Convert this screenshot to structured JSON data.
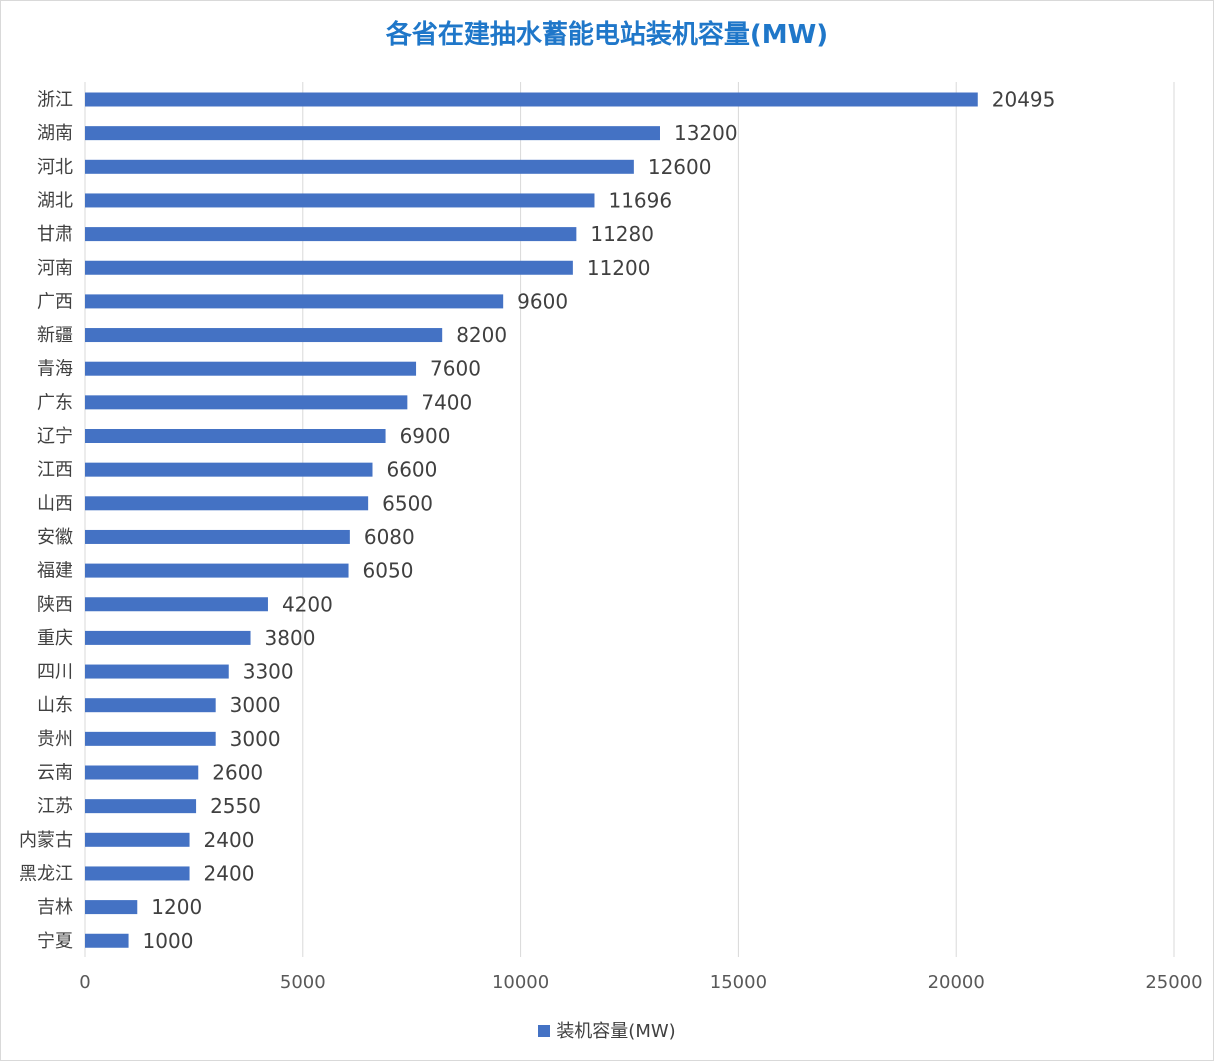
{
  "chart_data": {
    "type": "bar",
    "orientation": "horizontal",
    "title": "各省在建抽水蓄能电站装机容量(MW)",
    "categories": [
      "浙江",
      "湖南",
      "河北",
      "湖北",
      "甘肃",
      "河南",
      "广西",
      "新疆",
      "青海",
      "广东",
      "辽宁",
      "江西",
      "山西",
      "安徽",
      "福建",
      "陕西",
      "重庆",
      "四川",
      "山东",
      "贵州",
      "云南",
      "江苏",
      "内蒙古",
      "黑龙江",
      "吉林",
      "宁夏"
    ],
    "series": [
      {
        "name": "装机容量(MW)",
        "color": "#4472c4",
        "values": [
          20495,
          13200,
          12600,
          11696,
          11280,
          11200,
          9600,
          8200,
          7600,
          7400,
          6900,
          6600,
          6500,
          6080,
          6050,
          4200,
          3800,
          3300,
          3000,
          3000,
          2600,
          2550,
          2400,
          2400,
          1200,
          1000
        ]
      }
    ],
    "xlim": [
      0,
      25000
    ],
    "xticks": [
      0,
      5000,
      10000,
      15000,
      20000,
      25000
    ],
    "grid": "vertical",
    "legend": "bottom",
    "colors": {
      "title": "#1f77c9",
      "bar": "#4472c4",
      "grid": "#d9d9d9"
    }
  }
}
